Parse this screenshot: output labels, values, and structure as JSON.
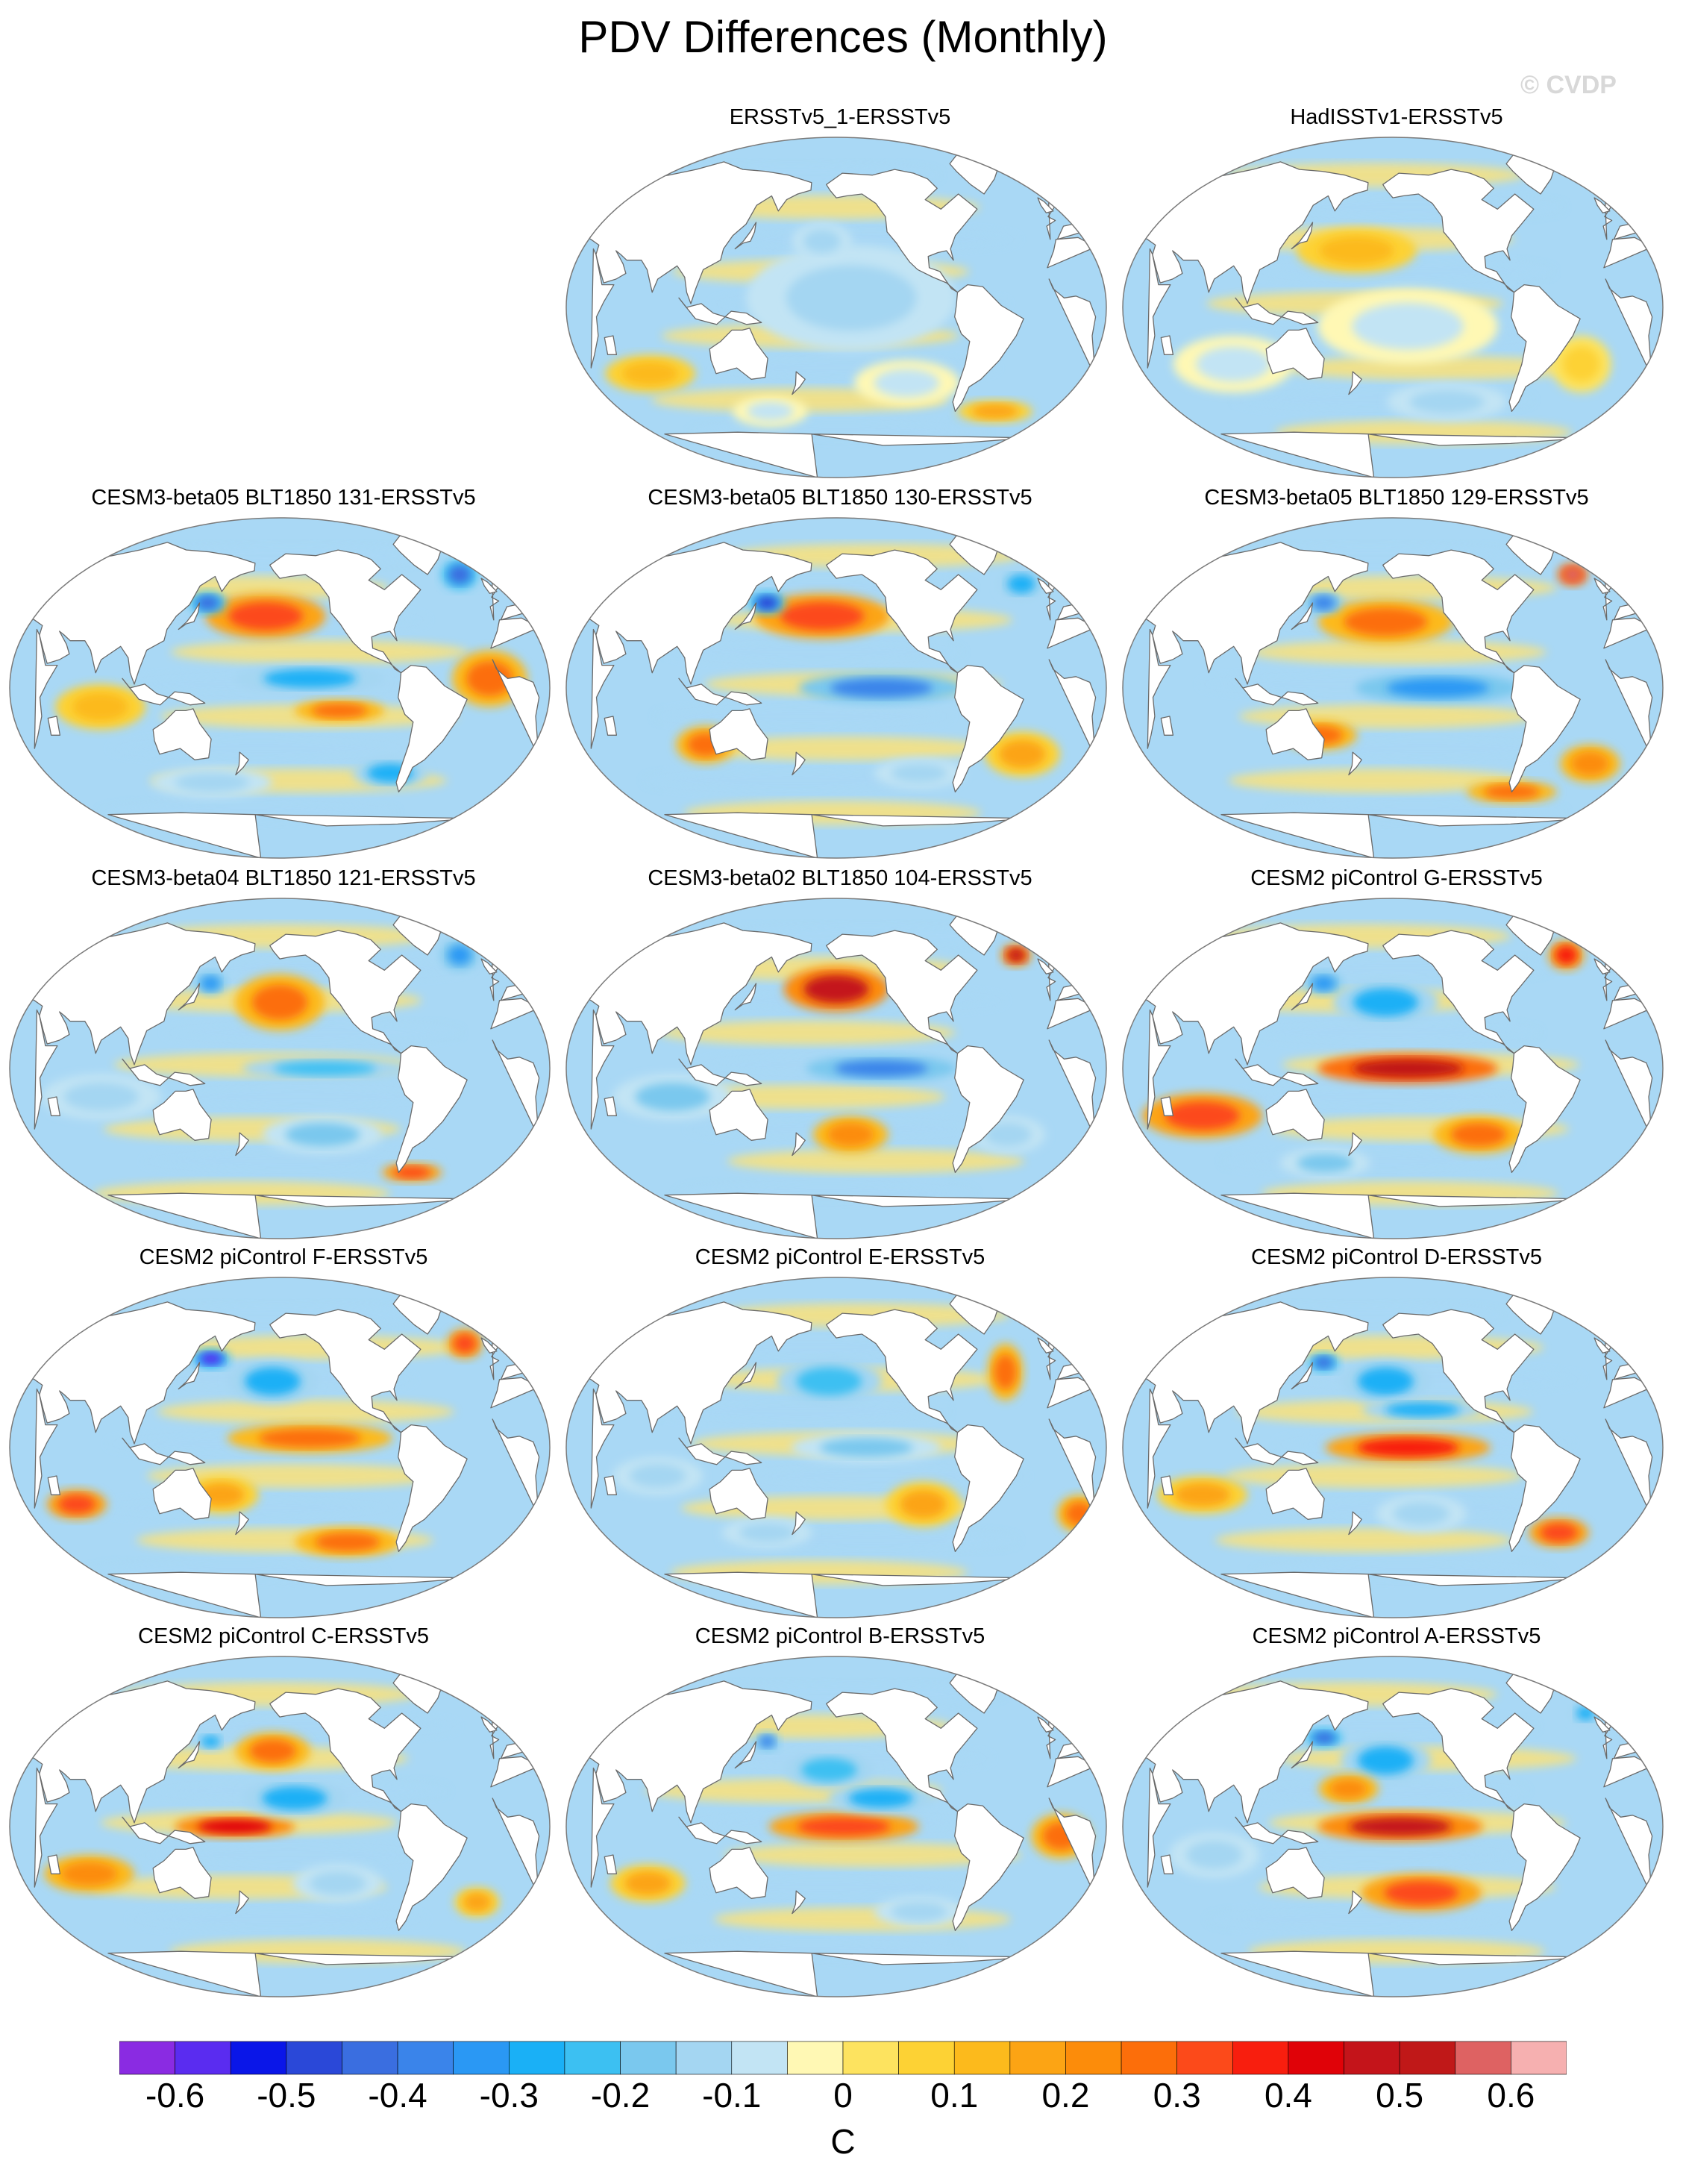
{
  "figure": {
    "title": "PDV Differences (Monthly)",
    "watermark": "© CVDP"
  },
  "colors": {
    "land": "#ffffff",
    "coast": "#6a6a6a",
    "border": "#7a7a7a",
    "warm": "#fbe27a",
    "cool": "#a9d8f5"
  },
  "panels": [
    {
      "title": "ERSSTv5_1-ERSSTv5",
      "blobs": [
        {
          "lon": -150,
          "lat": 5,
          "rx": 70,
          "ry": 28,
          "val": -0.12
        },
        {
          "lon": -170,
          "lat": 35,
          "rx": 20,
          "ry": 10,
          "val": -0.15
        },
        {
          "lon": -110,
          "lat": -40,
          "rx": 35,
          "ry": 12,
          "val": -0.08
        },
        {
          "lon": 70,
          "lat": -35,
          "rx": 30,
          "ry": 10,
          "val": 0.1
        },
        {
          "lon": -40,
          "lat": -55,
          "rx": 25,
          "ry": 6,
          "val": 0.15
        },
        {
          "lon": 150,
          "lat": -55,
          "rx": 25,
          "ry": 8,
          "val": -0.1
        }
      ]
    },
    {
      "title": "HadISSTv1-ERSSTv5",
      "blobs": [
        {
          "lon": 175,
          "lat": 30,
          "rx": 40,
          "ry": 12,
          "val": 0.1
        },
        {
          "lon": -150,
          "lat": -10,
          "rx": 60,
          "ry": 20,
          "val": -0.1
        },
        {
          "lon": 90,
          "lat": -30,
          "rx": 40,
          "ry": 15,
          "val": -0.1
        },
        {
          "lon": -30,
          "lat": -30,
          "rx": 20,
          "ry": 15,
          "val": 0.08
        },
        {
          "lon": -120,
          "lat": -50,
          "rx": 40,
          "ry": 10,
          "val": -0.12
        }
      ]
    },
    {
      "title": "CESM3-beta05 BLT1850 131-ERSSTv5",
      "blobs": [
        {
          "lon": -170,
          "lat": 38,
          "rx": 40,
          "ry": 12,
          "val": 0.32
        },
        {
          "lon": 148,
          "lat": 45,
          "rx": 12,
          "ry": 6,
          "val": -0.45
        },
        {
          "lon": -20,
          "lat": 60,
          "rx": 12,
          "ry": 8,
          "val": -0.45
        },
        {
          "lon": -140,
          "lat": 5,
          "rx": 50,
          "ry": 8,
          "val": -0.3
        },
        {
          "lon": -120,
          "lat": -12,
          "rx": 30,
          "ry": 6,
          "val": 0.25
        },
        {
          "lon": -20,
          "lat": 5,
          "rx": 25,
          "ry": 15,
          "val": 0.25
        },
        {
          "lon": 80,
          "lat": -10,
          "rx": 30,
          "ry": 12,
          "val": 0.12
        },
        {
          "lon": -80,
          "lat": -45,
          "rx": 25,
          "ry": 8,
          "val": -0.3
        },
        {
          "lon": 150,
          "lat": -50,
          "rx": 40,
          "ry": 8,
          "val": -0.15
        }
      ]
    },
    {
      "title": "CESM3-beta05 BLT1850 130-ERSSTv5",
      "blobs": [
        {
          "lon": -170,
          "lat": 38,
          "rx": 45,
          "ry": 12,
          "val": 0.3
        },
        {
          "lon": 150,
          "lat": 45,
          "rx": 12,
          "ry": 6,
          "val": -0.5
        },
        {
          "lon": -130,
          "lat": 0,
          "rx": 55,
          "ry": 8,
          "val": -0.4
        },
        {
          "lon": -20,
          "lat": 55,
          "rx": 15,
          "ry": 8,
          "val": -0.3
        },
        {
          "lon": 110,
          "lat": -30,
          "rx": 20,
          "ry": 10,
          "val": 0.25
        },
        {
          "lon": -30,
          "lat": -35,
          "rx": 25,
          "ry": 12,
          "val": 0.15
        },
        {
          "lon": -100,
          "lat": -45,
          "rx": 30,
          "ry": 8,
          "val": -0.15
        }
      ]
    },
    {
      "title": "CESM3-beta05 BLT1850 129-ERSSTv5",
      "blobs": [
        {
          "lon": -165,
          "lat": 35,
          "rx": 45,
          "ry": 12,
          "val": 0.28
        },
        {
          "lon": 150,
          "lat": 45,
          "rx": 12,
          "ry": 6,
          "val": -0.4
        },
        {
          "lon": -20,
          "lat": 60,
          "rx": 10,
          "ry": 6,
          "val": 0.55
        },
        {
          "lon": -130,
          "lat": 0,
          "rx": 55,
          "ry": 8,
          "val": -0.35
        },
        {
          "lon": 150,
          "lat": -25,
          "rx": 25,
          "ry": 8,
          "val": 0.25
        },
        {
          "lon": -20,
          "lat": -40,
          "rx": 20,
          "ry": 10,
          "val": 0.2
        },
        {
          "lon": -70,
          "lat": -55,
          "rx": 30,
          "ry": 6,
          "val": 0.25
        }
      ]
    },
    {
      "title": "CESM3-beta04 BLT1850 121-ERSSTv5",
      "blobs": [
        {
          "lon": -160,
          "lat": 35,
          "rx": 30,
          "ry": 15,
          "val": 0.25
        },
        {
          "lon": 150,
          "lat": 45,
          "rx": 10,
          "ry": 6,
          "val": -0.35
        },
        {
          "lon": -20,
          "lat": 60,
          "rx": 12,
          "ry": 8,
          "val": -0.35
        },
        {
          "lon": -130,
          "lat": 0,
          "rx": 55,
          "ry": 6,
          "val": -0.25
        },
        {
          "lon": 80,
          "lat": -15,
          "rx": 40,
          "ry": 12,
          "val": -0.15
        },
        {
          "lon": -130,
          "lat": -35,
          "rx": 40,
          "ry": 10,
          "val": -0.2
        },
        {
          "lon": -60,
          "lat": -55,
          "rx": 20,
          "ry": 5,
          "val": 0.3
        }
      ]
    },
    {
      "title": "CESM3-beta02 BLT1850 104-ERSSTv5",
      "blobs": [
        {
          "lon": -160,
          "lat": 42,
          "rx": 35,
          "ry": 12,
          "val": 0.45
        },
        {
          "lon": -130,
          "lat": 0,
          "rx": 50,
          "ry": 7,
          "val": -0.38
        },
        {
          "lon": -20,
          "lat": 60,
          "rx": 10,
          "ry": 6,
          "val": 0.45
        },
        {
          "lon": 90,
          "lat": -15,
          "rx": 40,
          "ry": 12,
          "val": -0.2
        },
        {
          "lon": -150,
          "lat": -35,
          "rx": 25,
          "ry": 10,
          "val": 0.22
        },
        {
          "lon": -40,
          "lat": -35,
          "rx": 25,
          "ry": 10,
          "val": -0.15
        }
      ]
    },
    {
      "title": "CESM2 piControl G-ERSSTv5",
      "blobs": [
        {
          "lon": -150,
          "lat": 0,
          "rx": 60,
          "ry": 8,
          "val": 0.5
        },
        {
          "lon": -165,
          "lat": 35,
          "rx": 35,
          "ry": 12,
          "val": -0.3
        },
        {
          "lon": 150,
          "lat": 45,
          "rx": 12,
          "ry": 6,
          "val": -0.35
        },
        {
          "lon": 70,
          "lat": -25,
          "rx": 40,
          "ry": 12,
          "val": 0.32
        },
        {
          "lon": -25,
          "lat": 60,
          "rx": 12,
          "ry": 8,
          "val": 0.35
        },
        {
          "lon": -100,
          "lat": -35,
          "rx": 30,
          "ry": 10,
          "val": 0.25
        },
        {
          "lon": 150,
          "lat": -50,
          "rx": 30,
          "ry": 8,
          "val": -0.2
        }
      ]
    },
    {
      "title": "CESM2 piControl F-ERSSTv5",
      "blobs": [
        {
          "lon": -165,
          "lat": 35,
          "rx": 30,
          "ry": 12,
          "val": -0.3
        },
        {
          "lon": 150,
          "lat": 47,
          "rx": 12,
          "ry": 5,
          "val": -0.6
        },
        {
          "lon": -140,
          "lat": 5,
          "rx": 55,
          "ry": 8,
          "val": 0.28
        },
        {
          "lon": -20,
          "lat": 55,
          "rx": 12,
          "ry": 8,
          "val": 0.3
        },
        {
          "lon": 60,
          "lat": -30,
          "rx": 20,
          "ry": 8,
          "val": 0.3
        },
        {
          "lon": -110,
          "lat": -50,
          "rx": 35,
          "ry": 8,
          "val": 0.25
        },
        {
          "lon": 160,
          "lat": -25,
          "rx": 25,
          "ry": 10,
          "val": 0.15
        }
      ]
    },
    {
      "title": "CESM2 piControl E-ERSSTv5",
      "blobs": [
        {
          "lon": -165,
          "lat": 35,
          "rx": 35,
          "ry": 12,
          "val": -0.25
        },
        {
          "lon": -140,
          "lat": 0,
          "rx": 50,
          "ry": 8,
          "val": -0.2
        },
        {
          "lon": -40,
          "lat": 40,
          "rx": 12,
          "ry": 15,
          "val": 0.28
        },
        {
          "lon": 80,
          "lat": -15,
          "rx": 30,
          "ry": 10,
          "val": -0.15
        },
        {
          "lon": -100,
          "lat": -30,
          "rx": 25,
          "ry": 12,
          "val": 0.15
        },
        {
          "lon": 10,
          "lat": -35,
          "rx": 15,
          "ry": 10,
          "val": 0.25
        },
        {
          "lon": 150,
          "lat": -45,
          "rx": 30,
          "ry": 8,
          "val": -0.15
        }
      ]
    },
    {
      "title": "CESM2 piControl D-ERSSTv5",
      "blobs": [
        {
          "lon": -150,
          "lat": 0,
          "rx": 55,
          "ry": 8,
          "val": 0.35
        },
        {
          "lon": -165,
          "lat": 35,
          "rx": 30,
          "ry": 12,
          "val": -0.28
        },
        {
          "lon": 150,
          "lat": 45,
          "rx": 10,
          "ry": 5,
          "val": -0.45
        },
        {
          "lon": -140,
          "lat": 20,
          "rx": 40,
          "ry": 6,
          "val": -0.3
        },
        {
          "lon": 70,
          "lat": -25,
          "rx": 30,
          "ry": 10,
          "val": 0.18
        },
        {
          "lon": -40,
          "lat": -45,
          "rx": 20,
          "ry": 8,
          "val": 0.3
        },
        {
          "lon": -140,
          "lat": -35,
          "rx": 30,
          "ry": 10,
          "val": -0.12
        }
      ]
    },
    {
      "title": "CESM2 piControl C-ERSSTv5",
      "blobs": [
        {
          "lon": 170,
          "lat": 0,
          "rx": 40,
          "ry": 6,
          "val": 0.4
        },
        {
          "lon": -150,
          "lat": 15,
          "rx": 35,
          "ry": 10,
          "val": -0.3
        },
        {
          "lon": -165,
          "lat": 40,
          "rx": 25,
          "ry": 10,
          "val": 0.25
        },
        {
          "lon": 150,
          "lat": 45,
          "rx": 10,
          "ry": 5,
          "val": -0.3
        },
        {
          "lon": 70,
          "lat": -25,
          "rx": 30,
          "ry": 10,
          "val": 0.2
        },
        {
          "lon": -120,
          "lat": -30,
          "rx": 30,
          "ry": 10,
          "val": -0.15
        },
        {
          "lon": -20,
          "lat": -40,
          "rx": 15,
          "ry": 8,
          "val": 0.15
        }
      ]
    },
    {
      "title": "CESM2 piControl B-ERSSTv5",
      "blobs": [
        {
          "lon": -155,
          "lat": 0,
          "rx": 50,
          "ry": 8,
          "val": 0.3
        },
        {
          "lon": -165,
          "lat": 30,
          "rx": 30,
          "ry": 10,
          "val": -0.25
        },
        {
          "lon": 150,
          "lat": 45,
          "rx": 8,
          "ry": 5,
          "val": -0.4
        },
        {
          "lon": -130,
          "lat": 15,
          "rx": 35,
          "ry": 8,
          "val": -0.3
        },
        {
          "lon": -10,
          "lat": -5,
          "rx": 20,
          "ry": 12,
          "val": 0.25
        },
        {
          "lon": 70,
          "lat": -30,
          "rx": 25,
          "ry": 10,
          "val": 0.15
        },
        {
          "lon": -100,
          "lat": -45,
          "rx": 30,
          "ry": 8,
          "val": -0.12
        }
      ]
    },
    {
      "title": "CESM2 piControl A-ERSSTv5",
      "blobs": [
        {
          "lon": -155,
          "lat": 0,
          "rx": 55,
          "ry": 8,
          "val": 0.48
        },
        {
          "lon": -165,
          "lat": 35,
          "rx": 30,
          "ry": 12,
          "val": -0.3
        },
        {
          "lon": 150,
          "lat": 47,
          "rx": 12,
          "ry": 5,
          "val": -0.45
        },
        {
          "lon": -140,
          "lat": -35,
          "rx": 40,
          "ry": 10,
          "val": 0.3
        },
        {
          "lon": 80,
          "lat": -15,
          "rx": 30,
          "ry": 12,
          "val": -0.15
        },
        {
          "lon": -10,
          "lat": 60,
          "rx": 10,
          "ry": 6,
          "val": -0.3
        },
        {
          "lon": 170,
          "lat": 20,
          "rx": 20,
          "ry": 8,
          "val": 0.2
        }
      ]
    }
  ],
  "colorbar": {
    "units": "C",
    "tick_labels": [
      "-0.6",
      "-0.5",
      "-0.4",
      "-0.3",
      "-0.2",
      "-0.1",
      "0",
      "0.1",
      "0.2",
      "0.3",
      "0.4",
      "0.5",
      "0.6"
    ],
    "levels": [
      -0.65,
      -0.6,
      -0.55,
      -0.5,
      -0.45,
      -0.4,
      -0.35,
      -0.3,
      -0.25,
      -0.2,
      -0.15,
      -0.1,
      -0.05,
      0,
      0.05,
      0.1,
      0.15,
      0.2,
      0.25,
      0.3,
      0.35,
      0.4,
      0.45,
      0.5,
      0.55,
      0.6,
      0.65
    ],
    "colors": [
      "#8a2be2",
      "#5a2cf0",
      "#0a16e8",
      "#2a48d8",
      "#3a6ee0",
      "#3a84ea",
      "#2a98f4",
      "#1ab0f6",
      "#3cc0f2",
      "#7ac8ee",
      "#a4d6f2",
      "#c2e4f4",
      "#fff8b4",
      "#fde35f",
      "#fdd234",
      "#fcba1c",
      "#fca414",
      "#fc8c0a",
      "#fc6e0a",
      "#fc4a1a",
      "#f81e0e",
      "#e00208",
      "#c4141a",
      "#c01818",
      "#de6262",
      "#f6b0b0"
    ]
  }
}
